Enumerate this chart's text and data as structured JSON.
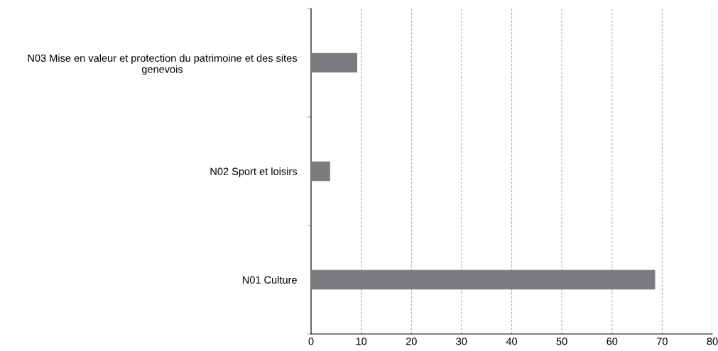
{
  "chart_data": {
    "type": "bar",
    "orientation": "horizontal",
    "categories": [
      "N03 Mise en valeur et protection du patrimoine et des sites genevois",
      "N02 Sport et loisirs",
      "N01 Culture"
    ],
    "values": [
      9.2,
      3.8,
      68.6
    ],
    "color": "#7c7c80",
    "xlim": [
      0,
      80
    ],
    "xticks": [
      0,
      10,
      20,
      30,
      40,
      50,
      60,
      70,
      80
    ],
    "grid": "x"
  }
}
